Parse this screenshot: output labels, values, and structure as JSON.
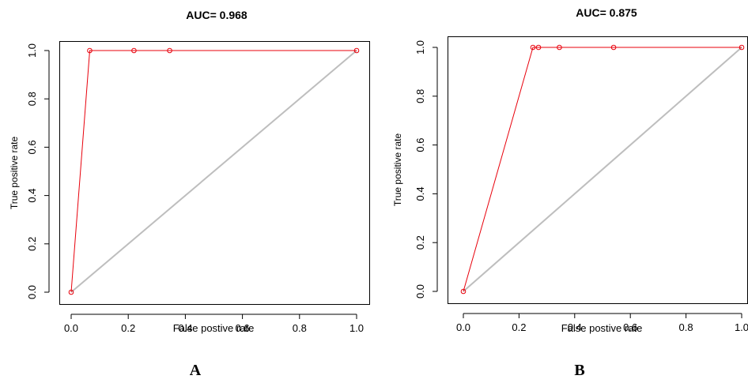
{
  "chart_data": [
    {
      "type": "line",
      "title": "AUC= 0.968",
      "xlabel": "False postive rate",
      "ylabel": "True positive rate",
      "panel_label": "A",
      "xlim": [
        0,
        1
      ],
      "ylim": [
        0,
        1
      ],
      "xticks": [
        "0.0",
        "0.2",
        "0.4",
        "0.6",
        "0.8",
        "1.0"
      ],
      "yticks": [
        "0.0",
        "0.2",
        "0.4",
        "0.6",
        "0.8",
        "1.0"
      ],
      "series": [
        {
          "color": "#e8000b",
          "x": [
            0.0,
            0.065,
            0.22,
            0.345,
            1.0
          ],
          "y": [
            0.0,
            1.0,
            1.0,
            1.0,
            1.0
          ]
        },
        {
          "color": "#bebebe",
          "x": [
            0.0,
            1.0
          ],
          "y": [
            0.0,
            1.0
          ]
        }
      ]
    },
    {
      "type": "line",
      "title": "AUC= 0.875",
      "xlabel": "False postive rate",
      "ylabel": "True positive rate",
      "panel_label": "B",
      "xlim": [
        0,
        1
      ],
      "ylim": [
        0,
        1
      ],
      "xticks": [
        "0.0",
        "0.2",
        "0.4",
        "0.6",
        "0.8",
        "1.0"
      ],
      "yticks": [
        "0.0",
        "0.2",
        "0.4",
        "0.6",
        "0.8",
        "1.0"
      ],
      "series": [
        {
          "color": "#e8000b",
          "x": [
            0.0,
            0.25,
            0.27,
            0.345,
            0.54,
            1.0
          ],
          "y": [
            0.0,
            1.0,
            1.0,
            1.0,
            1.0,
            1.0
          ]
        },
        {
          "color": "#bebebe",
          "x": [
            0.0,
            1.0
          ],
          "y": [
            0.0,
            1.0
          ]
        }
      ]
    }
  ]
}
